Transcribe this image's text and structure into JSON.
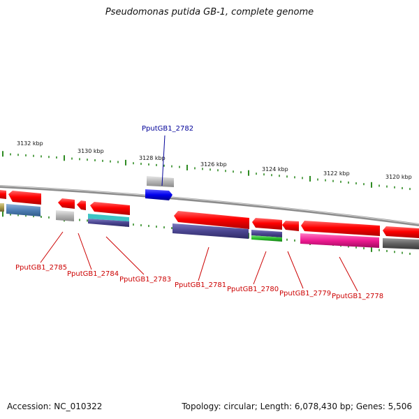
{
  "title": "Pseudomonas putida GB-1, complete genome",
  "footer": {
    "accession": "Accession: NC_010322",
    "summary": "Topology: circular; Length: 6,078,430 bp; Genes: 5,506"
  },
  "colors": {
    "forward_gene": "#ff0000",
    "reverse_gene": "#ff0000",
    "highlight_gene": "#0000cc",
    "label_red": "#cc0000",
    "label_blue": "#000099",
    "tick_green": "#2e8b22",
    "backbone": "#8c8c8c"
  },
  "scale_ticks": [
    {
      "label": "3132 kbp"
    },
    {
      "label": "3130 kbp"
    },
    {
      "label": "3128 kbp"
    },
    {
      "label": "3126 kbp"
    },
    {
      "label": "3124 kbp"
    },
    {
      "label": "3122 kbp"
    },
    {
      "label": "3120 kbp"
    }
  ],
  "gene_labels": [
    {
      "id": "PputGB1_2782",
      "text": "PputGB1_2782",
      "highlight": true
    },
    {
      "id": "PputGB1_2785",
      "text": "PputGB1_2785"
    },
    {
      "id": "PputGB1_2784",
      "text": "PputGB1_2784"
    },
    {
      "id": "PputGB1_2783",
      "text": "PputGB1_2783"
    },
    {
      "id": "PputGB1_2781",
      "text": "PputGB1_2781"
    },
    {
      "id": "PputGB1_2780",
      "text": "PputGB1_2780"
    },
    {
      "id": "PputGB1_2779",
      "text": "PputGB1_2779"
    },
    {
      "id": "PputGB1_2778",
      "text": "PputGB1_2778"
    }
  ]
}
